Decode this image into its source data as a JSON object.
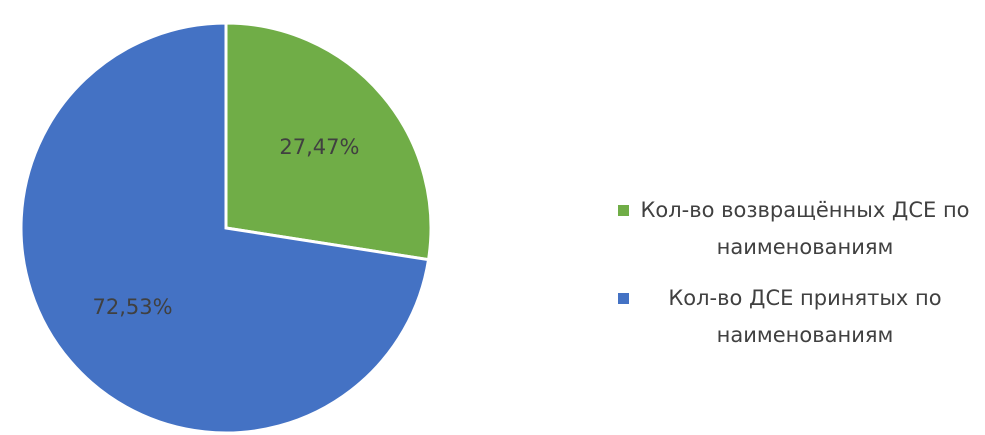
{
  "chart_data": {
    "type": "pie",
    "categories": [
      "Кол-во возвращённых ДСЕ по наименованиям",
      "Кол-во ДСЕ принятых по наименованиям"
    ],
    "values": [
      27.47,
      72.53
    ],
    "value_labels": [
      "27,47%",
      "72,53%"
    ],
    "colors": [
      "#70ad47",
      "#4472c4"
    ],
    "legend": "right"
  }
}
